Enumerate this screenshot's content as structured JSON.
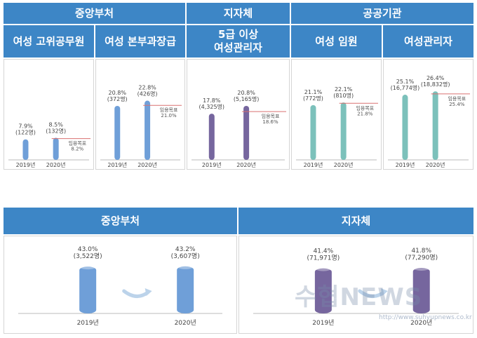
{
  "top_section": {
    "groups": [
      {
        "label": "중앙부처"
      },
      {
        "label": "지자체"
      },
      {
        "label": "공공기관"
      }
    ],
    "panels": [
      {
        "title": "여성 고위공무원"
      },
      {
        "title": "여성 본부과장급"
      },
      {
        "title": "5급 이상\n여성관리자"
      },
      {
        "title": "여성 임원"
      },
      {
        "title": "여성관리자"
      }
    ]
  },
  "bottom_section": {
    "panels": [
      {
        "title": "중앙부처"
      },
      {
        "title": "지자체"
      }
    ]
  },
  "watermark": {
    "text": "수협NEWS",
    "url": "http://www.suhyupnews.co.kr"
  },
  "colors": {
    "header": "#3d86c6",
    "blue": "#6f9fd8",
    "purple": "#76669e",
    "teal": "#7cc1bb",
    "target": "#d97070"
  },
  "chart_data": [
    {
      "type": "bar",
      "title": "여성 고위공무원",
      "categories": [
        "2019년",
        "2020년"
      ],
      "values": [
        7.9,
        8.5
      ],
      "labels": [
        "7.9%\n(122명)",
        "8.5%\n(132명)"
      ],
      "target_label": "임용목표\n8.2%",
      "target": 8.2,
      "color": "blue"
    },
    {
      "type": "bar",
      "title": "여성 본부과장급",
      "categories": [
        "2019년",
        "2020년"
      ],
      "values": [
        20.8,
        22.8
      ],
      "labels": [
        "20.8%\n(372명)",
        "22.8%\n(426명)"
      ],
      "target_label": "임용목표\n21.0%",
      "target": 21.0,
      "color": "blue"
    },
    {
      "type": "bar",
      "title": "5급 이상 여성관리자",
      "categories": [
        "2019년",
        "2020년"
      ],
      "values": [
        17.8,
        20.8
      ],
      "labels": [
        "17.8%\n(4,325명)",
        "20.8%\n(5,165명)"
      ],
      "target_label": "임용목표\n18.6%",
      "target": 18.6,
      "color": "purple"
    },
    {
      "type": "bar",
      "title": "여성 임원",
      "categories": [
        "2019년",
        "2020년"
      ],
      "values": [
        21.1,
        22.1
      ],
      "labels": [
        "21.1%\n(772명)",
        "22.1%\n(810명)"
      ],
      "target_label": "임용목표\n21.8%",
      "target": 21.8,
      "color": "teal"
    },
    {
      "type": "bar",
      "title": "여성관리자",
      "categories": [
        "2019년",
        "2020년"
      ],
      "values": [
        25.1,
        26.4
      ],
      "labels": [
        "25.1%\n(16,774명)",
        "26.4%\n(18,832명)"
      ],
      "target_label": "임용목표\n25.4%",
      "target": 25.4,
      "color": "teal"
    },
    {
      "type": "bar",
      "title": "중앙부처",
      "categories": [
        "2019년",
        "2020년"
      ],
      "values": [
        43.0,
        43.2
      ],
      "labels": [
        "43.0%\n(3,522명)",
        "43.2%\n(3,607명)"
      ],
      "color": "blue"
    },
    {
      "type": "bar",
      "title": "지자체",
      "categories": [
        "2019년",
        "2020년"
      ],
      "values": [
        41.4,
        41.8
      ],
      "labels": [
        "41.4%\n(71,971명)",
        "41.8%\n(77,290명)"
      ],
      "color": "purple"
    }
  ]
}
